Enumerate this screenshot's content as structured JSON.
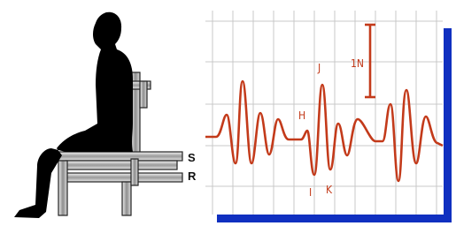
{
  "labels": {
    "seat": "S",
    "rail": "R",
    "wave_h": "H",
    "wave_i": "I",
    "wave_j": "J",
    "wave_k": "K",
    "scale": "1N"
  }
}
